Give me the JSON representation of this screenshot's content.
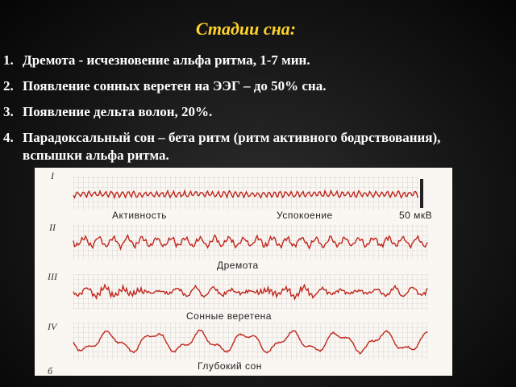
{
  "title": "Стадии сна:",
  "stages": [
    {
      "num": "1.",
      "text": "Дремота - исчезновение альфа ритма, 1-7 мин."
    },
    {
      "num": "2.",
      "text": "Появление сонных веретен на ЭЭГ – до 50% сна."
    },
    {
      "num": "3.",
      "text": "Появление дельта волон, 20%."
    },
    {
      "num": "4.",
      "text": "Парадоксальный сон – бета ритм (ритм активного бодрствования), вспышки альфа ритма."
    }
  ],
  "figure": {
    "row_labels": [
      "I",
      "II",
      "III",
      "IV",
      "б"
    ],
    "caption_activity": "Активность",
    "caption_rest": "Успокоение",
    "caption_scale": "50 мкВ",
    "caption_drowsiness": "Дремота",
    "caption_spindles": "Сонные веретена",
    "caption_deep_sleep": "Глубокий сон",
    "trace_color": "#c0261c",
    "grid_color": "#bfbfbf"
  }
}
